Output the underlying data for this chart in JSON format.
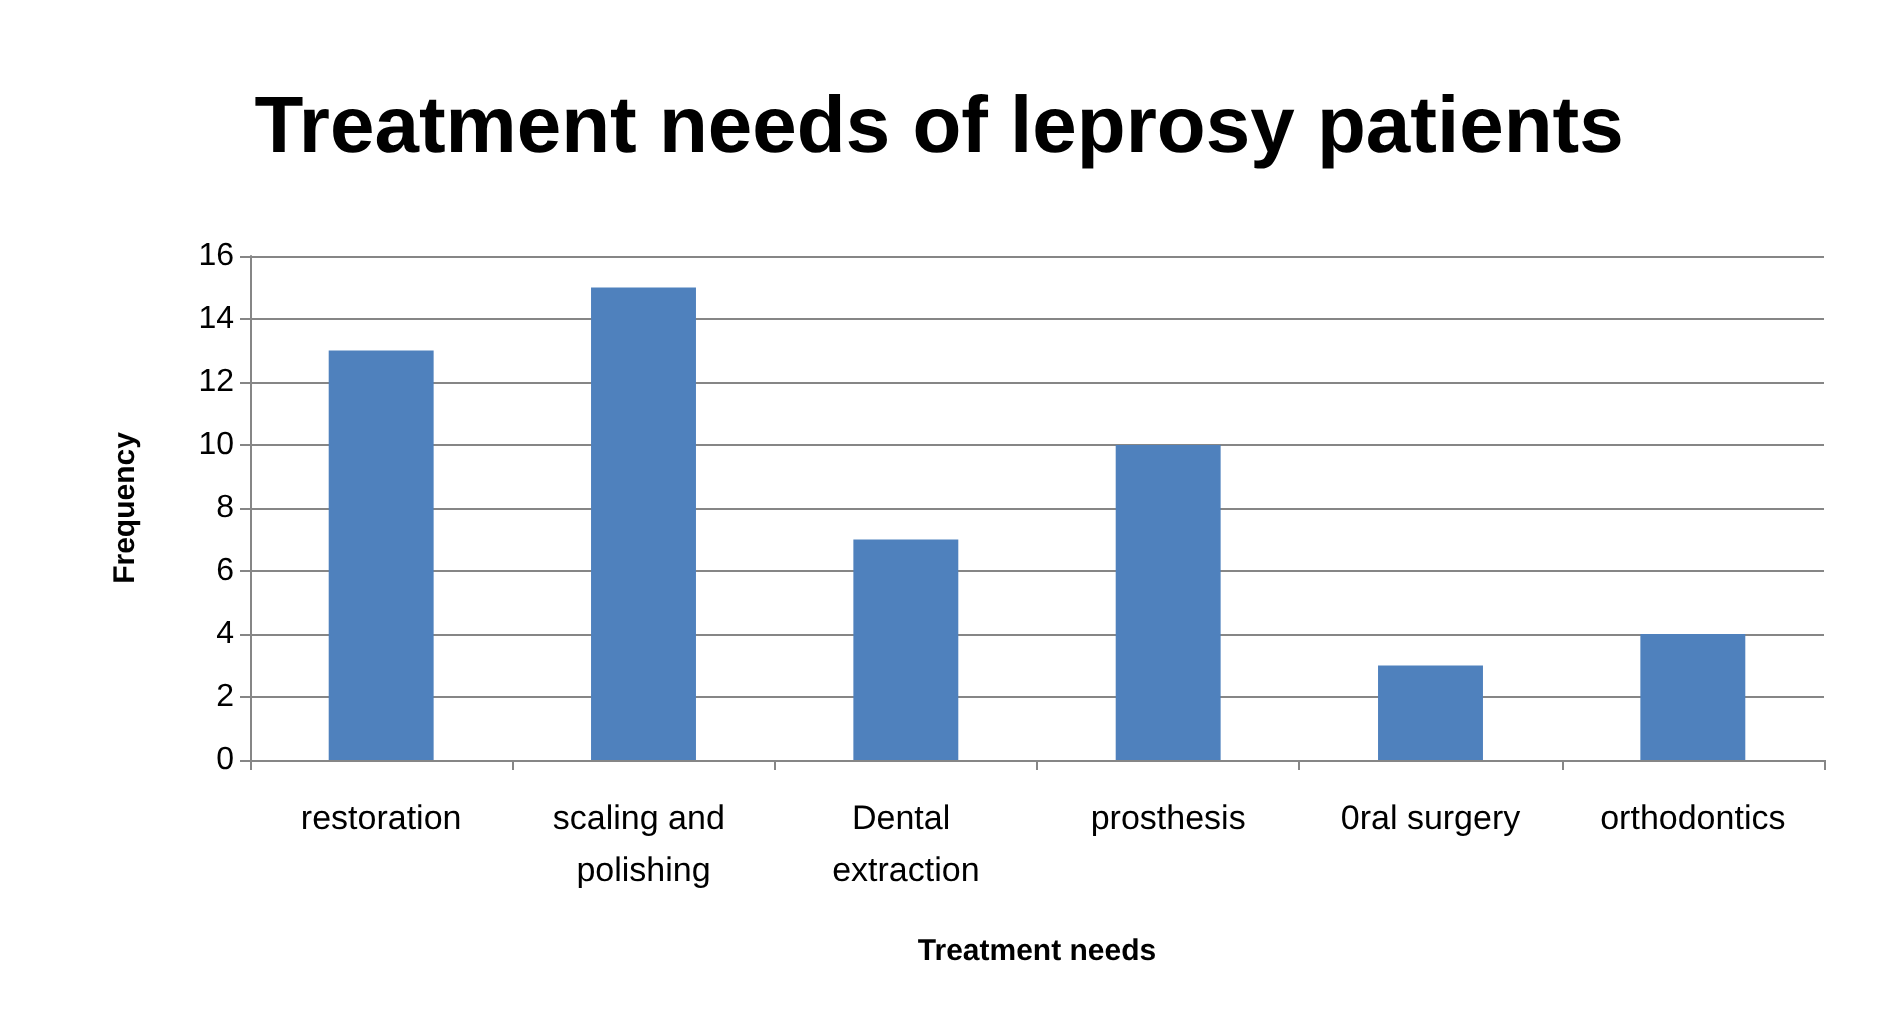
{
  "chart_data": {
    "type": "bar",
    "title": "Treatment needs of leprosy patients",
    "xlabel": "Treatment needs",
    "ylabel": "Frequency",
    "categories": [
      "restoration",
      "scaling and polishing",
      "Dental extraction",
      "prosthesis",
      "0ral surgery",
      "orthodontics"
    ],
    "values": [
      13,
      15,
      7,
      10,
      3,
      4
    ],
    "color": "#4f81bd",
    "ylim": [
      0,
      16
    ],
    "yticks": [
      0,
      2,
      4,
      6,
      8,
      10,
      12,
      14,
      16
    ],
    "grid": "y"
  }
}
